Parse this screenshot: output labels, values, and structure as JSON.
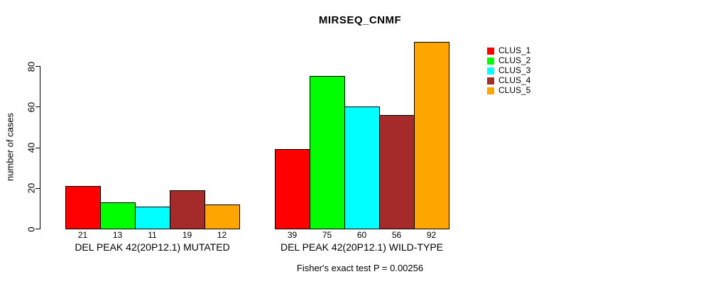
{
  "chart_data": {
    "type": "bar",
    "title": "MIRSEQ_CNMF",
    "ylabel": "number of cases",
    "xlabel": "",
    "yticks": [
      0,
      20,
      40,
      60,
      80
    ],
    "ylim": [
      0,
      92
    ],
    "grid": false,
    "legend_position": "right-outside-top",
    "categories": [
      "DEL PEAK 42(20P12.1) MUTATED",
      "DEL PEAK 42(20P12.1) WILD-TYPE"
    ],
    "series": [
      {
        "name": "CLUS_1",
        "color": "#FF0000",
        "values": [
          21,
          39
        ]
      },
      {
        "name": "CLUS_2",
        "color": "#00FF00",
        "values": [
          13,
          75
        ]
      },
      {
        "name": "CLUS_3",
        "color": "#00FFFF",
        "values": [
          11,
          60
        ]
      },
      {
        "name": "CLUS_4",
        "color": "#A52A2A",
        "values": [
          19,
          56
        ]
      },
      {
        "name": "CLUS_5",
        "color": "#FFA500",
        "values": [
          12,
          92
        ]
      }
    ],
    "bar_value_labels_shown": true,
    "annotation": "Fisher's exact test P = 0.00256"
  }
}
